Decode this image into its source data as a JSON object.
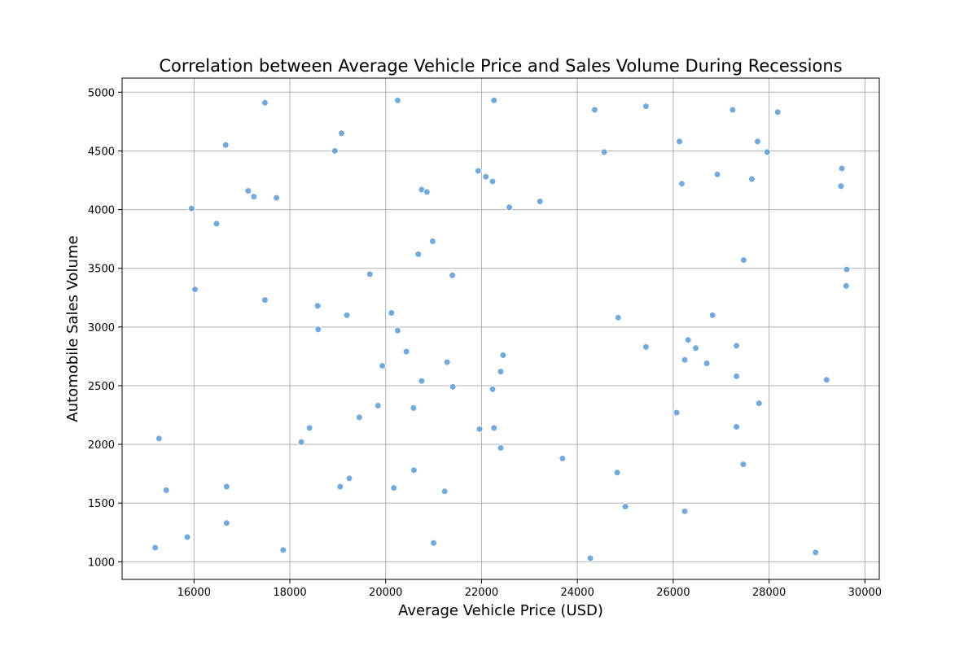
{
  "chart_data": {
    "type": "scatter",
    "title": "Correlation between Average Vehicle Price and Sales Volume During Recessions",
    "xlabel": "Average Vehicle Price (USD)",
    "ylabel": "Automobile Sales Volume",
    "xlim": [
      14500,
      30300
    ],
    "ylim": [
      850,
      5120
    ],
    "xticks": [
      16000,
      18000,
      20000,
      22000,
      24000,
      26000,
      28000,
      30000
    ],
    "yticks": [
      1000,
      1500,
      2000,
      2500,
      3000,
      3500,
      4000,
      4500,
      5000
    ],
    "grid": true,
    "marker_color": "#5b9bd5",
    "marker_edge_color": "#ffffff",
    "points": [
      [
        17480,
        4910
      ],
      [
        20250,
        4930
      ],
      [
        22260,
        4930
      ],
      [
        24360,
        4850
      ],
      [
        25430,
        4880
      ],
      [
        27240,
        4850
      ],
      [
        28180,
        4830
      ],
      [
        19080,
        4650
      ],
      [
        16660,
        4550
      ],
      [
        18940,
        4500
      ],
      [
        24560,
        4490
      ],
      [
        26130,
        4580
      ],
      [
        27760,
        4580
      ],
      [
        27960,
        4490
      ],
      [
        17130,
        4160
      ],
      [
        17250,
        4110
      ],
      [
        17720,
        4100
      ],
      [
        20750,
        4170
      ],
      [
        20860,
        4150
      ],
      [
        21930,
        4330
      ],
      [
        22090,
        4280
      ],
      [
        22230,
        4240
      ],
      [
        26920,
        4300
      ],
      [
        27640,
        4260
      ],
      [
        29520,
        4350
      ],
      [
        29500,
        4200
      ],
      [
        26180,
        4220
      ],
      [
        15950,
        4010
      ],
      [
        16470,
        3880
      ],
      [
        22580,
        4020
      ],
      [
        23220,
        4070
      ],
      [
        20980,
        3730
      ],
      [
        20680,
        3620
      ],
      [
        21390,
        3440
      ],
      [
        19670,
        3450
      ],
      [
        27470,
        3570
      ],
      [
        29620,
        3490
      ],
      [
        29610,
        3350
      ],
      [
        16020,
        3320
      ],
      [
        17480,
        3230
      ],
      [
        18580,
        3180
      ],
      [
        19190,
        3100
      ],
      [
        20120,
        3120
      ],
      [
        24850,
        3080
      ],
      [
        26820,
        3100
      ],
      [
        18590,
        2980
      ],
      [
        20250,
        2970
      ],
      [
        26310,
        2890
      ],
      [
        25430,
        2830
      ],
      [
        26470,
        2820
      ],
      [
        27320,
        2840
      ],
      [
        20430,
        2790
      ],
      [
        21280,
        2700
      ],
      [
        22450,
        2760
      ],
      [
        26240,
        2720
      ],
      [
        26700,
        2690
      ],
      [
        19930,
        2670
      ],
      [
        22400,
        2620
      ],
      [
        20750,
        2540
      ],
      [
        21400,
        2490
      ],
      [
        22230,
        2470
      ],
      [
        27320,
        2580
      ],
      [
        29200,
        2550
      ],
      [
        19840,
        2330
      ],
      [
        20580,
        2310
      ],
      [
        19450,
        2230
      ],
      [
        26070,
        2270
      ],
      [
        27790,
        2350
      ],
      [
        18410,
        2140
      ],
      [
        21960,
        2130
      ],
      [
        22260,
        2140
      ],
      [
        27320,
        2150
      ],
      [
        18240,
        2020
      ],
      [
        15270,
        2050
      ],
      [
        22400,
        1970
      ],
      [
        23690,
        1880
      ],
      [
        27460,
        1830
      ],
      [
        20590,
        1780
      ],
      [
        24830,
        1760
      ],
      [
        19240,
        1710
      ],
      [
        19050,
        1640
      ],
      [
        16680,
        1640
      ],
      [
        20170,
        1630
      ],
      [
        21230,
        1600
      ],
      [
        15420,
        1610
      ],
      [
        25000,
        1470
      ],
      [
        26240,
        1430
      ],
      [
        16680,
        1330
      ],
      [
        15860,
        1210
      ],
      [
        15190,
        1120
      ],
      [
        21000,
        1160
      ],
      [
        17860,
        1100
      ],
      [
        24270,
        1030
      ],
      [
        28970,
        1080
      ]
    ]
  }
}
